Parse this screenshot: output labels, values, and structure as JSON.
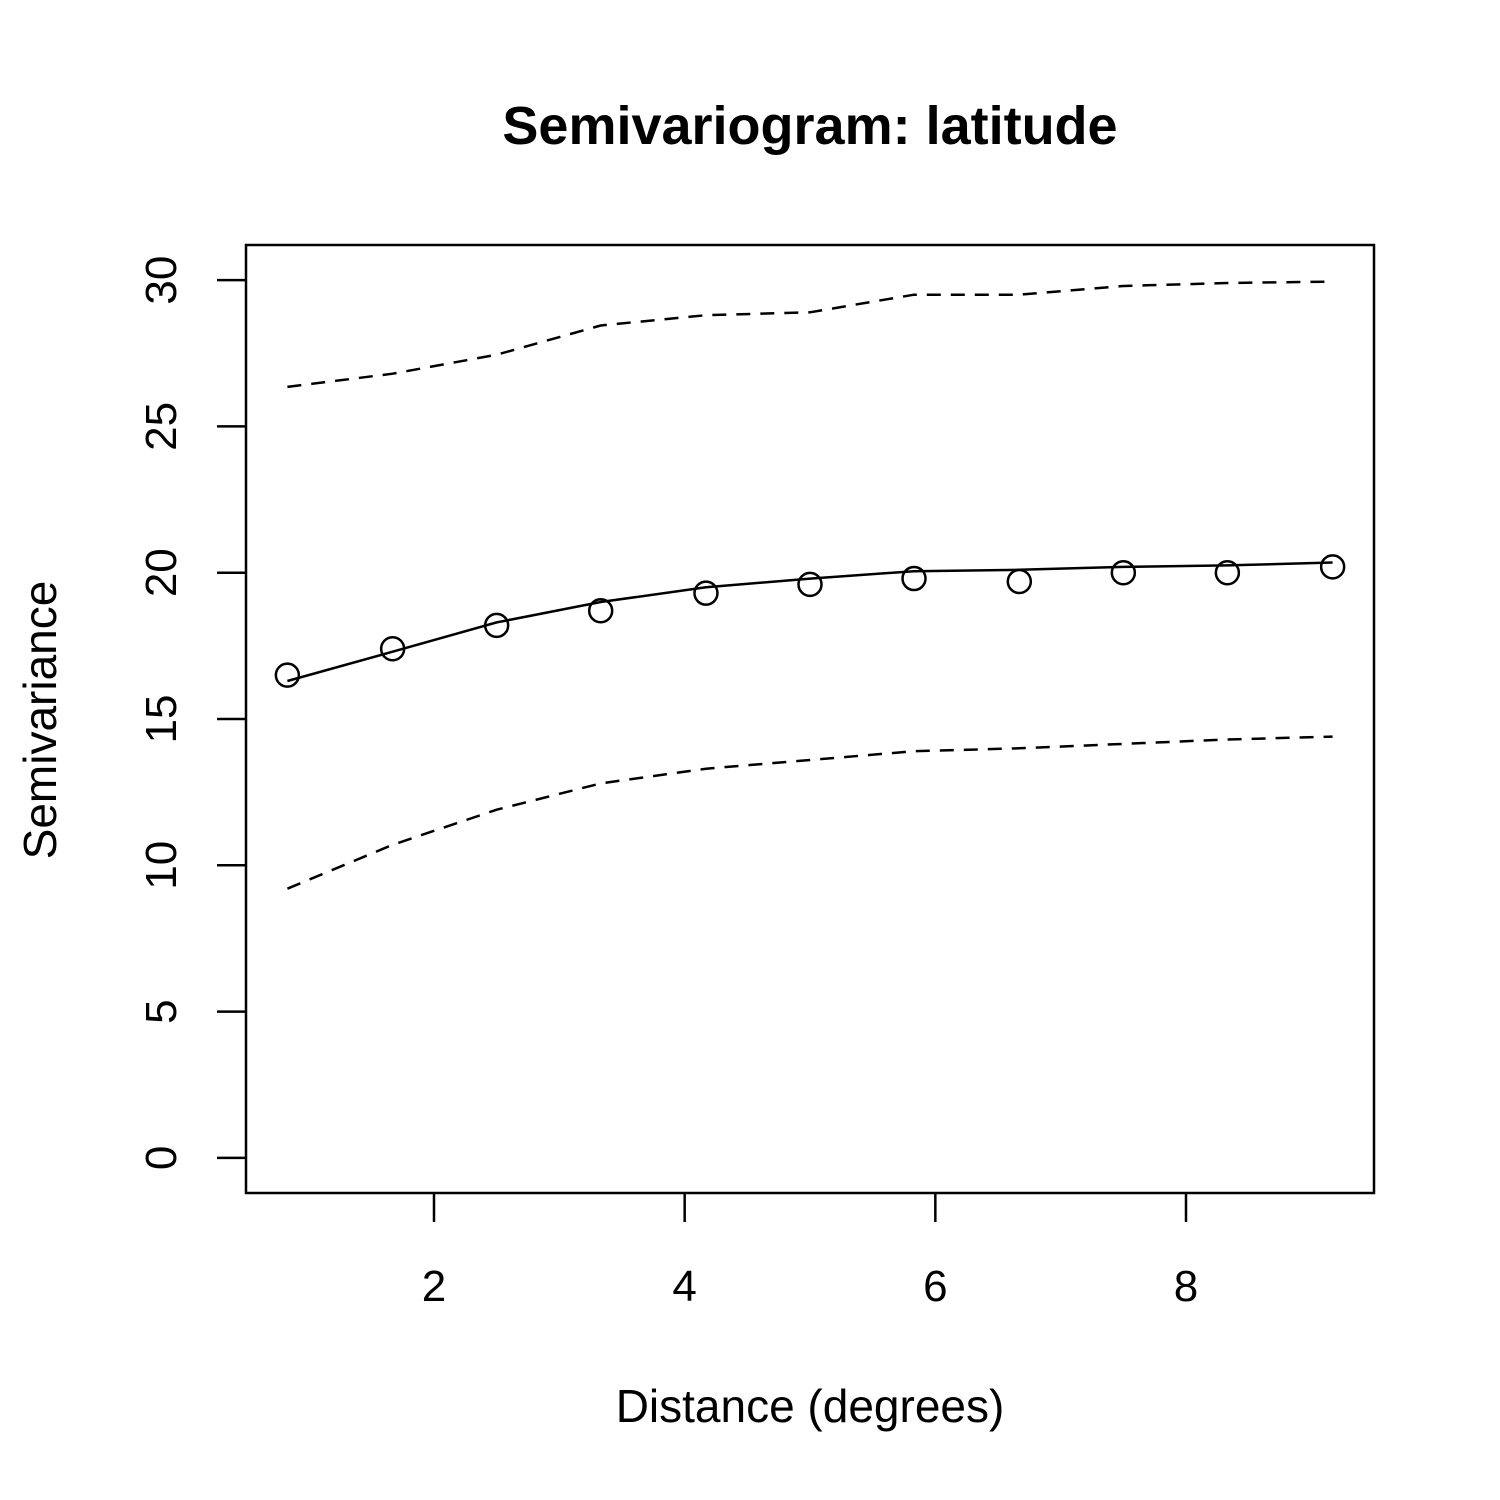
{
  "chart_data": {
    "type": "line",
    "title": "Semivariogram: latitude",
    "xlabel": "Distance (degrees)",
    "ylabel": "Semivariance",
    "xlim": [
      0.5,
      9.5
    ],
    "ylim": [
      -1.2,
      31.2
    ],
    "xticks": [
      2,
      4,
      6,
      8
    ],
    "yticks": [
      0,
      5,
      10,
      15,
      20,
      25,
      30
    ],
    "grid": false,
    "x": [
      0.83,
      1.67,
      2.5,
      3.33,
      4.17,
      5.0,
      5.83,
      6.67,
      7.5,
      8.33,
      9.17
    ],
    "series": [
      {
        "style": "points",
        "values": [
          16.5,
          17.4,
          18.2,
          18.7,
          19.3,
          19.6,
          19.8,
          19.7,
          20.0,
          20.0,
          20.2
        ]
      },
      {
        "style": "solid",
        "values": [
          16.3,
          17.3,
          18.3,
          19.0,
          19.5,
          19.8,
          20.05,
          20.1,
          20.2,
          20.25,
          20.35
        ]
      },
      {
        "style": "dashed",
        "values": [
          26.35,
          26.8,
          27.45,
          28.45,
          28.8,
          28.9,
          29.5,
          29.5,
          29.8,
          29.9,
          29.95
        ]
      },
      {
        "style": "dashed",
        "values": [
          9.2,
          10.7,
          11.9,
          12.8,
          13.3,
          13.6,
          13.9,
          14.0,
          14.15,
          14.3,
          14.4
        ]
      }
    ]
  }
}
